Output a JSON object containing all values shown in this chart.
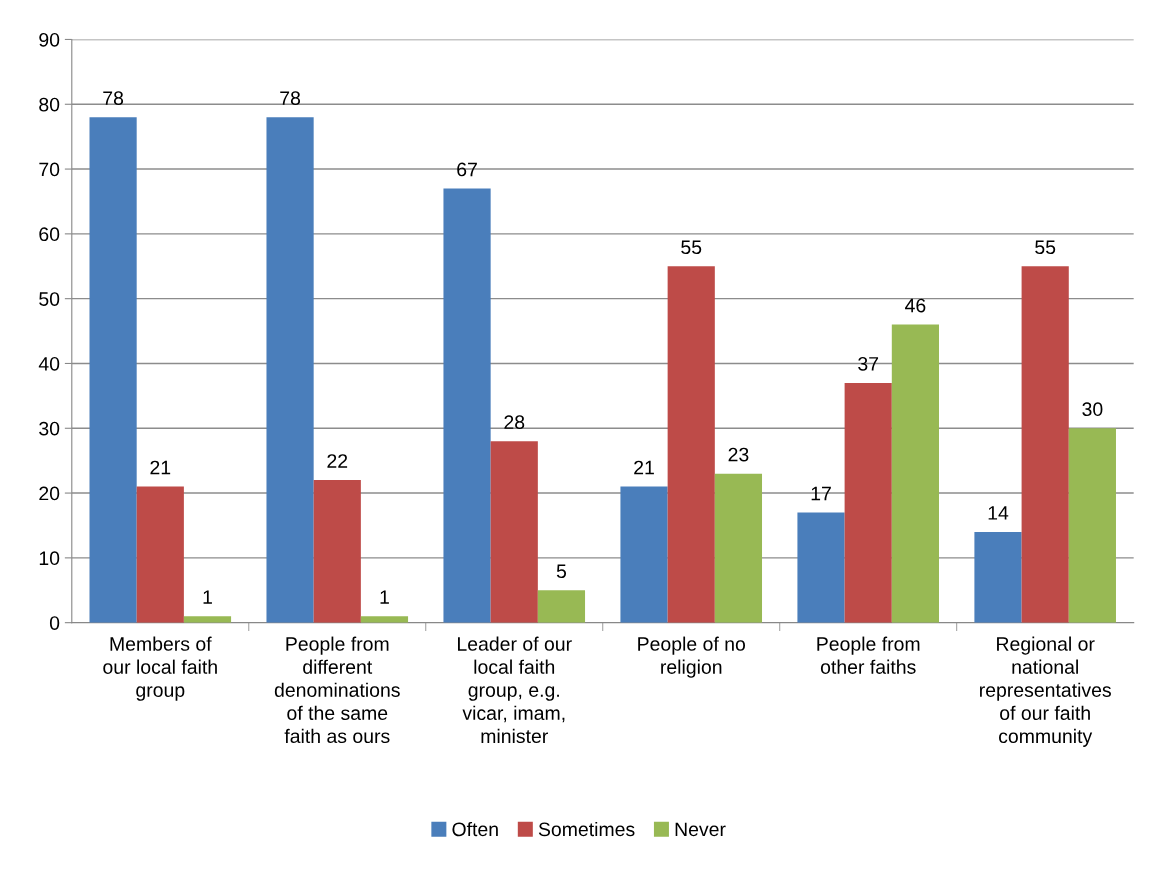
{
  "chart_data": {
    "type": "bar",
    "categories": [
      "Members of\nour local faith\ngroup",
      "People from\ndifferent\ndenominations\nof the same\nfaith as ours",
      "Leader of our\nlocal faith\ngroup, e.g.\nvicar, imam,\nminister",
      "People of no\nreligion",
      "People from\nother faiths",
      "Regional or\nnational\nrepresentatives\nof our faith\ncommunity"
    ],
    "series": [
      {
        "name": "Often",
        "color": "#4a7ebb",
        "values": [
          78,
          78,
          67,
          21,
          17,
          14
        ]
      },
      {
        "name": "Sometimes",
        "color": "#be4b48",
        "values": [
          21,
          22,
          28,
          55,
          37,
          55
        ]
      },
      {
        "name": "Never",
        "color": "#98b954",
        "values": [
          1,
          1,
          5,
          23,
          46,
          30
        ]
      }
    ],
    "ylim": [
      0,
      90
    ],
    "yticks": [
      0,
      10,
      20,
      30,
      40,
      50,
      60,
      70,
      80,
      90
    ],
    "grid": "y",
    "legend": "bottom",
    "data_labels": true
  }
}
